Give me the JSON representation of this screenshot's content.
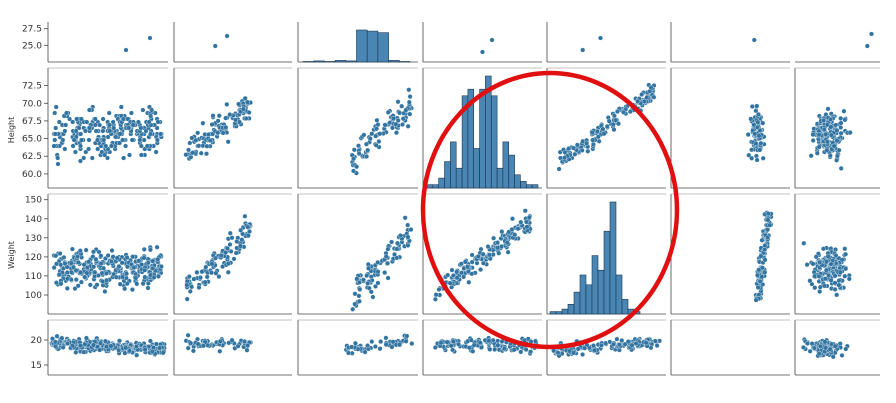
{
  "chart_data": {
    "type": "scatter",
    "kind": "pairplot",
    "colors": {
      "point": "#3274a1",
      "edge": "#ffffff",
      "hist": "#4a86b4",
      "annotation": "#e01010"
    },
    "row_labels": [
      "",
      "Height",
      "Weight",
      ""
    ],
    "rows": [
      {
        "ticks": [
          25.0,
          27.5
        ],
        "tick_labels": [
          "25.0",
          "27.5"
        ],
        "range": [
          22.5,
          28.5
        ]
      },
      {
        "ticks": [
          60.0,
          62.5,
          65.0,
          67.5,
          70.0,
          72.5
        ],
        "tick_labels": [
          "60.0",
          "62.5",
          "65.0",
          "67.5",
          "70.0",
          "72.5"
        ],
        "range": [
          58,
          75
        ]
      },
      {
        "ticks": [
          100,
          110,
          120,
          130,
          140,
          150
        ],
        "tick_labels": [
          "100",
          "110",
          "120",
          "130",
          "140",
          "150"
        ],
        "range": [
          90,
          153
        ]
      },
      {
        "ticks": [
          15,
          20
        ],
        "tick_labels": [
          "15",
          "20"
        ],
        "range": [
          13,
          24
        ]
      }
    ],
    "histograms": {
      "height": [
        1,
        1,
        3,
        8,
        14,
        6,
        28,
        30,
        12,
        30,
        34,
        28,
        6,
        14,
        10,
        4,
        2,
        1,
        1
      ],
      "weight": [
        1,
        1,
        2,
        4,
        9,
        16,
        12,
        24,
        18,
        34,
        46,
        16,
        6,
        2,
        1
      ],
      "top_row": [
        1,
        2,
        1,
        3,
        2,
        60,
        58,
        55,
        3,
        1
      ]
    },
    "annotation": "red ellipse highlighting Height vs Weight panels"
  }
}
